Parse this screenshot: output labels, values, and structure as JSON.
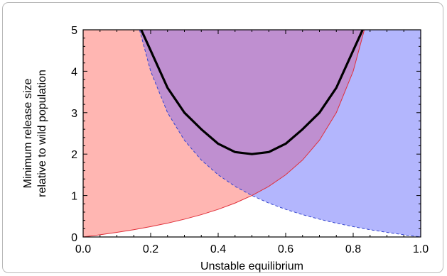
{
  "chart_data": {
    "type": "area",
    "xlabel": "Unstable equilibrium",
    "ylabel": [
      "Minimum release size",
      "relative to wild population"
    ],
    "xlim": [
      0.0,
      1.0
    ],
    "ylim": [
      0,
      5
    ],
    "x_ticks": [
      "0.0",
      "0.2",
      "0.4",
      "0.6",
      "0.8",
      "1.0"
    ],
    "y_ticks": [
      "0",
      "1",
      "2",
      "3",
      "4",
      "5"
    ],
    "grid": false,
    "series": [
      {
        "style": "shaded region above red thin line",
        "color": "#e0303a",
        "fill": "#ffb6b2",
        "x": [
          0.0,
          0.05,
          0.1,
          0.15,
          0.2,
          0.25,
          0.3,
          0.35,
          0.4,
          0.45,
          0.5,
          0.55,
          0.6,
          0.65,
          0.7,
          0.75,
          0.8,
          0.833
        ],
        "y": [
          0.0,
          0.053,
          0.111,
          0.176,
          0.25,
          0.333,
          0.429,
          0.538,
          0.667,
          0.818,
          1.0,
          1.222,
          1.5,
          1.857,
          2.333,
          3.0,
          4.0,
          5.0
        ]
      },
      {
        "style": "shaded region above blue dashed line",
        "color": "#3344cc",
        "fill": "#b3b6fd",
        "x": [
          0.167,
          0.2,
          0.25,
          0.3,
          0.35,
          0.4,
          0.45,
          0.5,
          0.55,
          0.6,
          0.65,
          0.7,
          0.75,
          0.8,
          0.85,
          0.9,
          0.95,
          1.0
        ],
        "y": [
          5.0,
          4.0,
          3.0,
          2.333,
          1.857,
          1.5,
          1.222,
          1.0,
          0.818,
          0.667,
          0.538,
          0.429,
          0.333,
          0.25,
          0.176,
          0.111,
          0.053,
          0.0
        ]
      },
      {
        "style": "thick black line",
        "color": "#000000",
        "x": [
          0.172,
          0.2,
          0.25,
          0.3,
          0.35,
          0.4,
          0.45,
          0.5,
          0.55,
          0.6,
          0.65,
          0.7,
          0.75,
          0.8,
          0.828
        ],
        "y": [
          5.0,
          4.5,
          3.6,
          3.0,
          2.6,
          2.25,
          2.05,
          2.0,
          2.05,
          2.25,
          2.6,
          3.0,
          3.6,
          4.5,
          5.0
        ]
      }
    ],
    "overlap_fill": "#bf8fd0"
  }
}
